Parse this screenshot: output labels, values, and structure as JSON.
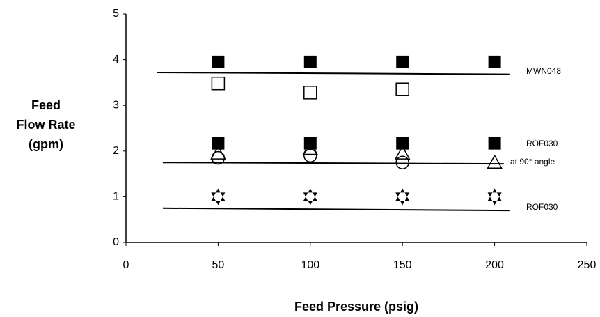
{
  "chart_data": {
    "type": "scatter",
    "x_label": "Feed Pressure (psig)",
    "y_label": [
      "Feed",
      "Flow Rate",
      "(gpm)"
    ],
    "xlim": [
      0,
      250
    ],
    "xticks": [
      0,
      50,
      100,
      150,
      200,
      250
    ],
    "ylim": [
      0,
      5
    ],
    "yticks": [
      0,
      1,
      2,
      3,
      4,
      5
    ],
    "grid": false,
    "series": [
      {
        "marker": "square-filled",
        "color": "#000000",
        "x": [
          50,
          100,
          150,
          200
        ],
        "values": [
          3.95,
          3.95,
          3.95,
          3.95
        ]
      },
      {
        "marker": "square-open",
        "color": "#000000",
        "x": [
          50,
          100,
          150
        ],
        "values": [
          3.48,
          3.28,
          3.35
        ]
      },
      {
        "marker": "square-filled",
        "color": "#000000",
        "x": [
          50,
          100,
          150,
          200
        ],
        "values": [
          2.17,
          2.17,
          2.17,
          2.17
        ]
      },
      {
        "marker": "circle-open",
        "color": "#000000",
        "x": [
          50,
          100,
          150
        ],
        "values": [
          1.85,
          1.9,
          1.75
        ]
      },
      {
        "marker": "triangle-open",
        "color": "#000000",
        "x": [
          50,
          100,
          150,
          200
        ],
        "values": [
          1.95,
          2.05,
          1.95,
          1.75
        ]
      },
      {
        "marker": "star-filled",
        "color": "#000000",
        "x": [
          50,
          100,
          150,
          200
        ],
        "values": [
          1.0,
          1.0,
          1.0,
          1.0
        ]
      },
      {
        "marker": "line",
        "color": "#000000",
        "x": [
          17,
          208
        ],
        "values": [
          3.72,
          3.68
        ]
      },
      {
        "marker": "line",
        "color": "#000000",
        "x": [
          20,
          205
        ],
        "values": [
          1.75,
          1.72
        ]
      },
      {
        "marker": "line",
        "color": "#000000",
        "x": [
          20,
          208
        ],
        "values": [
          0.75,
          0.7
        ]
      }
    ],
    "annotations": [
      "MWN048",
      "ROF030",
      "at 90° angle",
      "ROF030"
    ]
  }
}
